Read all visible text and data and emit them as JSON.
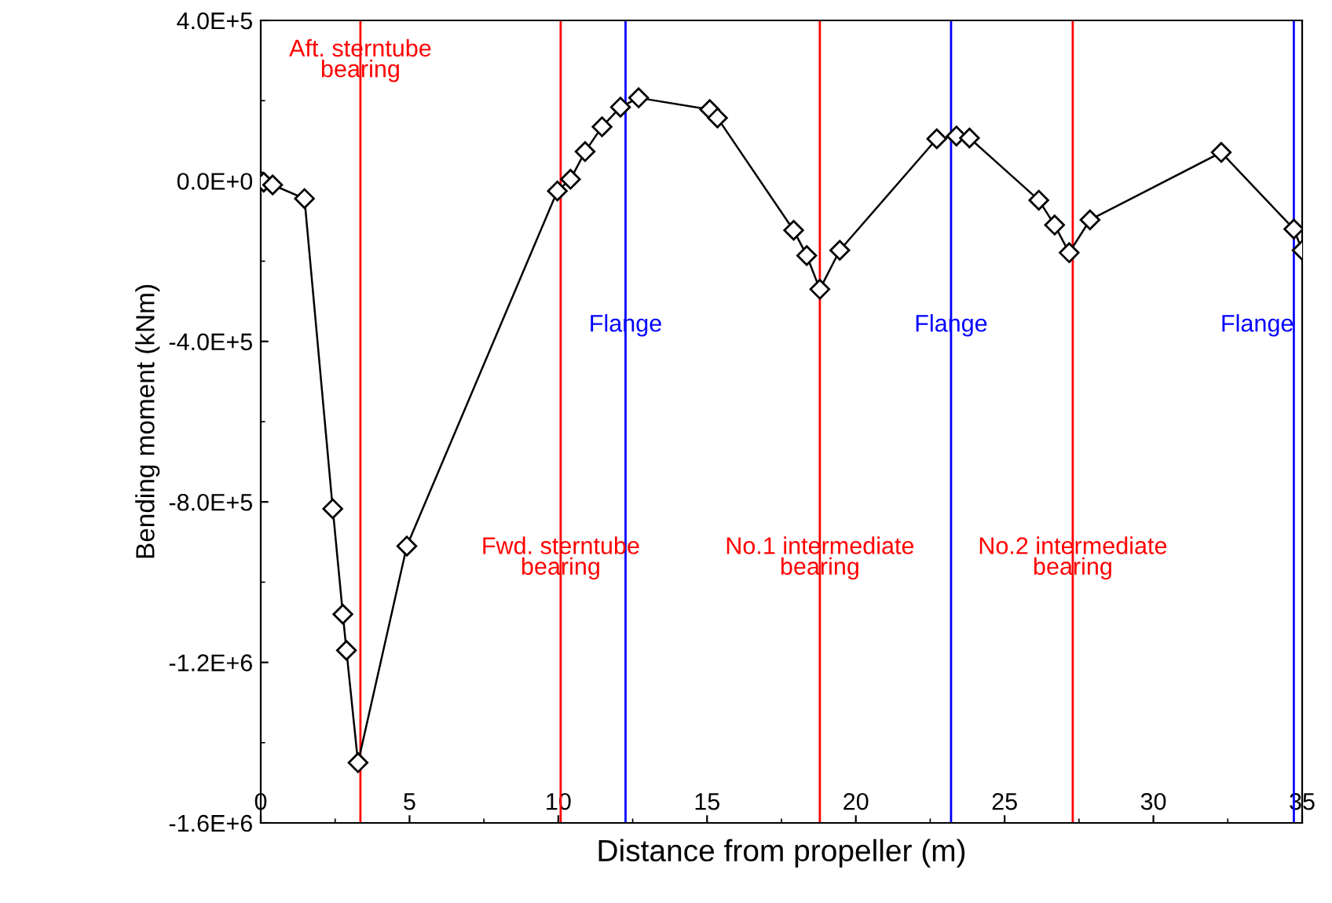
{
  "chart_data": {
    "type": "line",
    "xlabel": "Distance from propeller (m)",
    "ylabel": "Bending moment (kNm)",
    "x": [
      0,
      0.1,
      0.4,
      1.47,
      2.42,
      2.76,
      2.88,
      3.27,
      4.91,
      9.97,
      10.41,
      10.9,
      11.47,
      12.09,
      12.7,
      15.09,
      15.35,
      17.91,
      18.35,
      18.79,
      19.46,
      22.72,
      23.38,
      23.82,
      26.15,
      26.68,
      27.17,
      27.87,
      32.28,
      34.72,
      35.0
    ],
    "series": [
      {
        "color": "#000000",
        "values": [
          0,
          -3000,
          -10000,
          -44000,
          -817000,
          -1080000,
          -1170000,
          -1450000,
          -910000,
          -25000,
          4000,
          73000,
          135000,
          184000,
          207000,
          178000,
          157000,
          -123000,
          -186000,
          -270000,
          -173000,
          105000,
          112000,
          107000,
          -48000,
          -110000,
          -179000,
          -97000,
          71000,
          -120000,
          -173000
        ]
      }
    ],
    "marker": "diamond",
    "line_style": "solid",
    "grid": false,
    "legend": false,
    "xlim": [
      0,
      35
    ],
    "xticks": [
      0,
      5,
      10,
      15,
      20,
      25,
      30,
      35
    ],
    "ylim": [
      -1600000,
      400000
    ],
    "yticks": [
      {
        "value": -1600000,
        "label": "-1.6E+6"
      },
      {
        "value": -1200000,
        "label": "-1.2E+6"
      },
      {
        "value": -800000,
        "label": "-8.0E+5"
      },
      {
        "value": -400000,
        "label": "-4.0E+5"
      },
      {
        "value": 0,
        "label": "0.0E+0"
      },
      {
        "value": 400000,
        "label": "4.0E+5"
      }
    ],
    "ref_lines": [
      {
        "axis": "x",
        "value": 3.35,
        "label": "Aft. sterntube\nbearing",
        "color": "#ff0000"
      },
      {
        "axis": "x",
        "value": 10.08,
        "label": "Fwd. sterntube\nbearing",
        "color": "#ff0000"
      },
      {
        "axis": "x",
        "value": 12.26,
        "label": "Flange",
        "color": "#0000ff"
      },
      {
        "axis": "x",
        "value": 18.79,
        "label": "No.1 intermediate\nbearing",
        "color": "#ff0000"
      },
      {
        "axis": "x",
        "value": 23.2,
        "label": "Flange",
        "color": "#0000ff"
      },
      {
        "axis": "x",
        "value": 27.29,
        "label": "No.2 intermediate\nbearing",
        "color": "#ff0000"
      },
      {
        "axis": "x",
        "value": 34.72,
        "label": "Flange",
        "color": "#0000ff"
      }
    ]
  }
}
